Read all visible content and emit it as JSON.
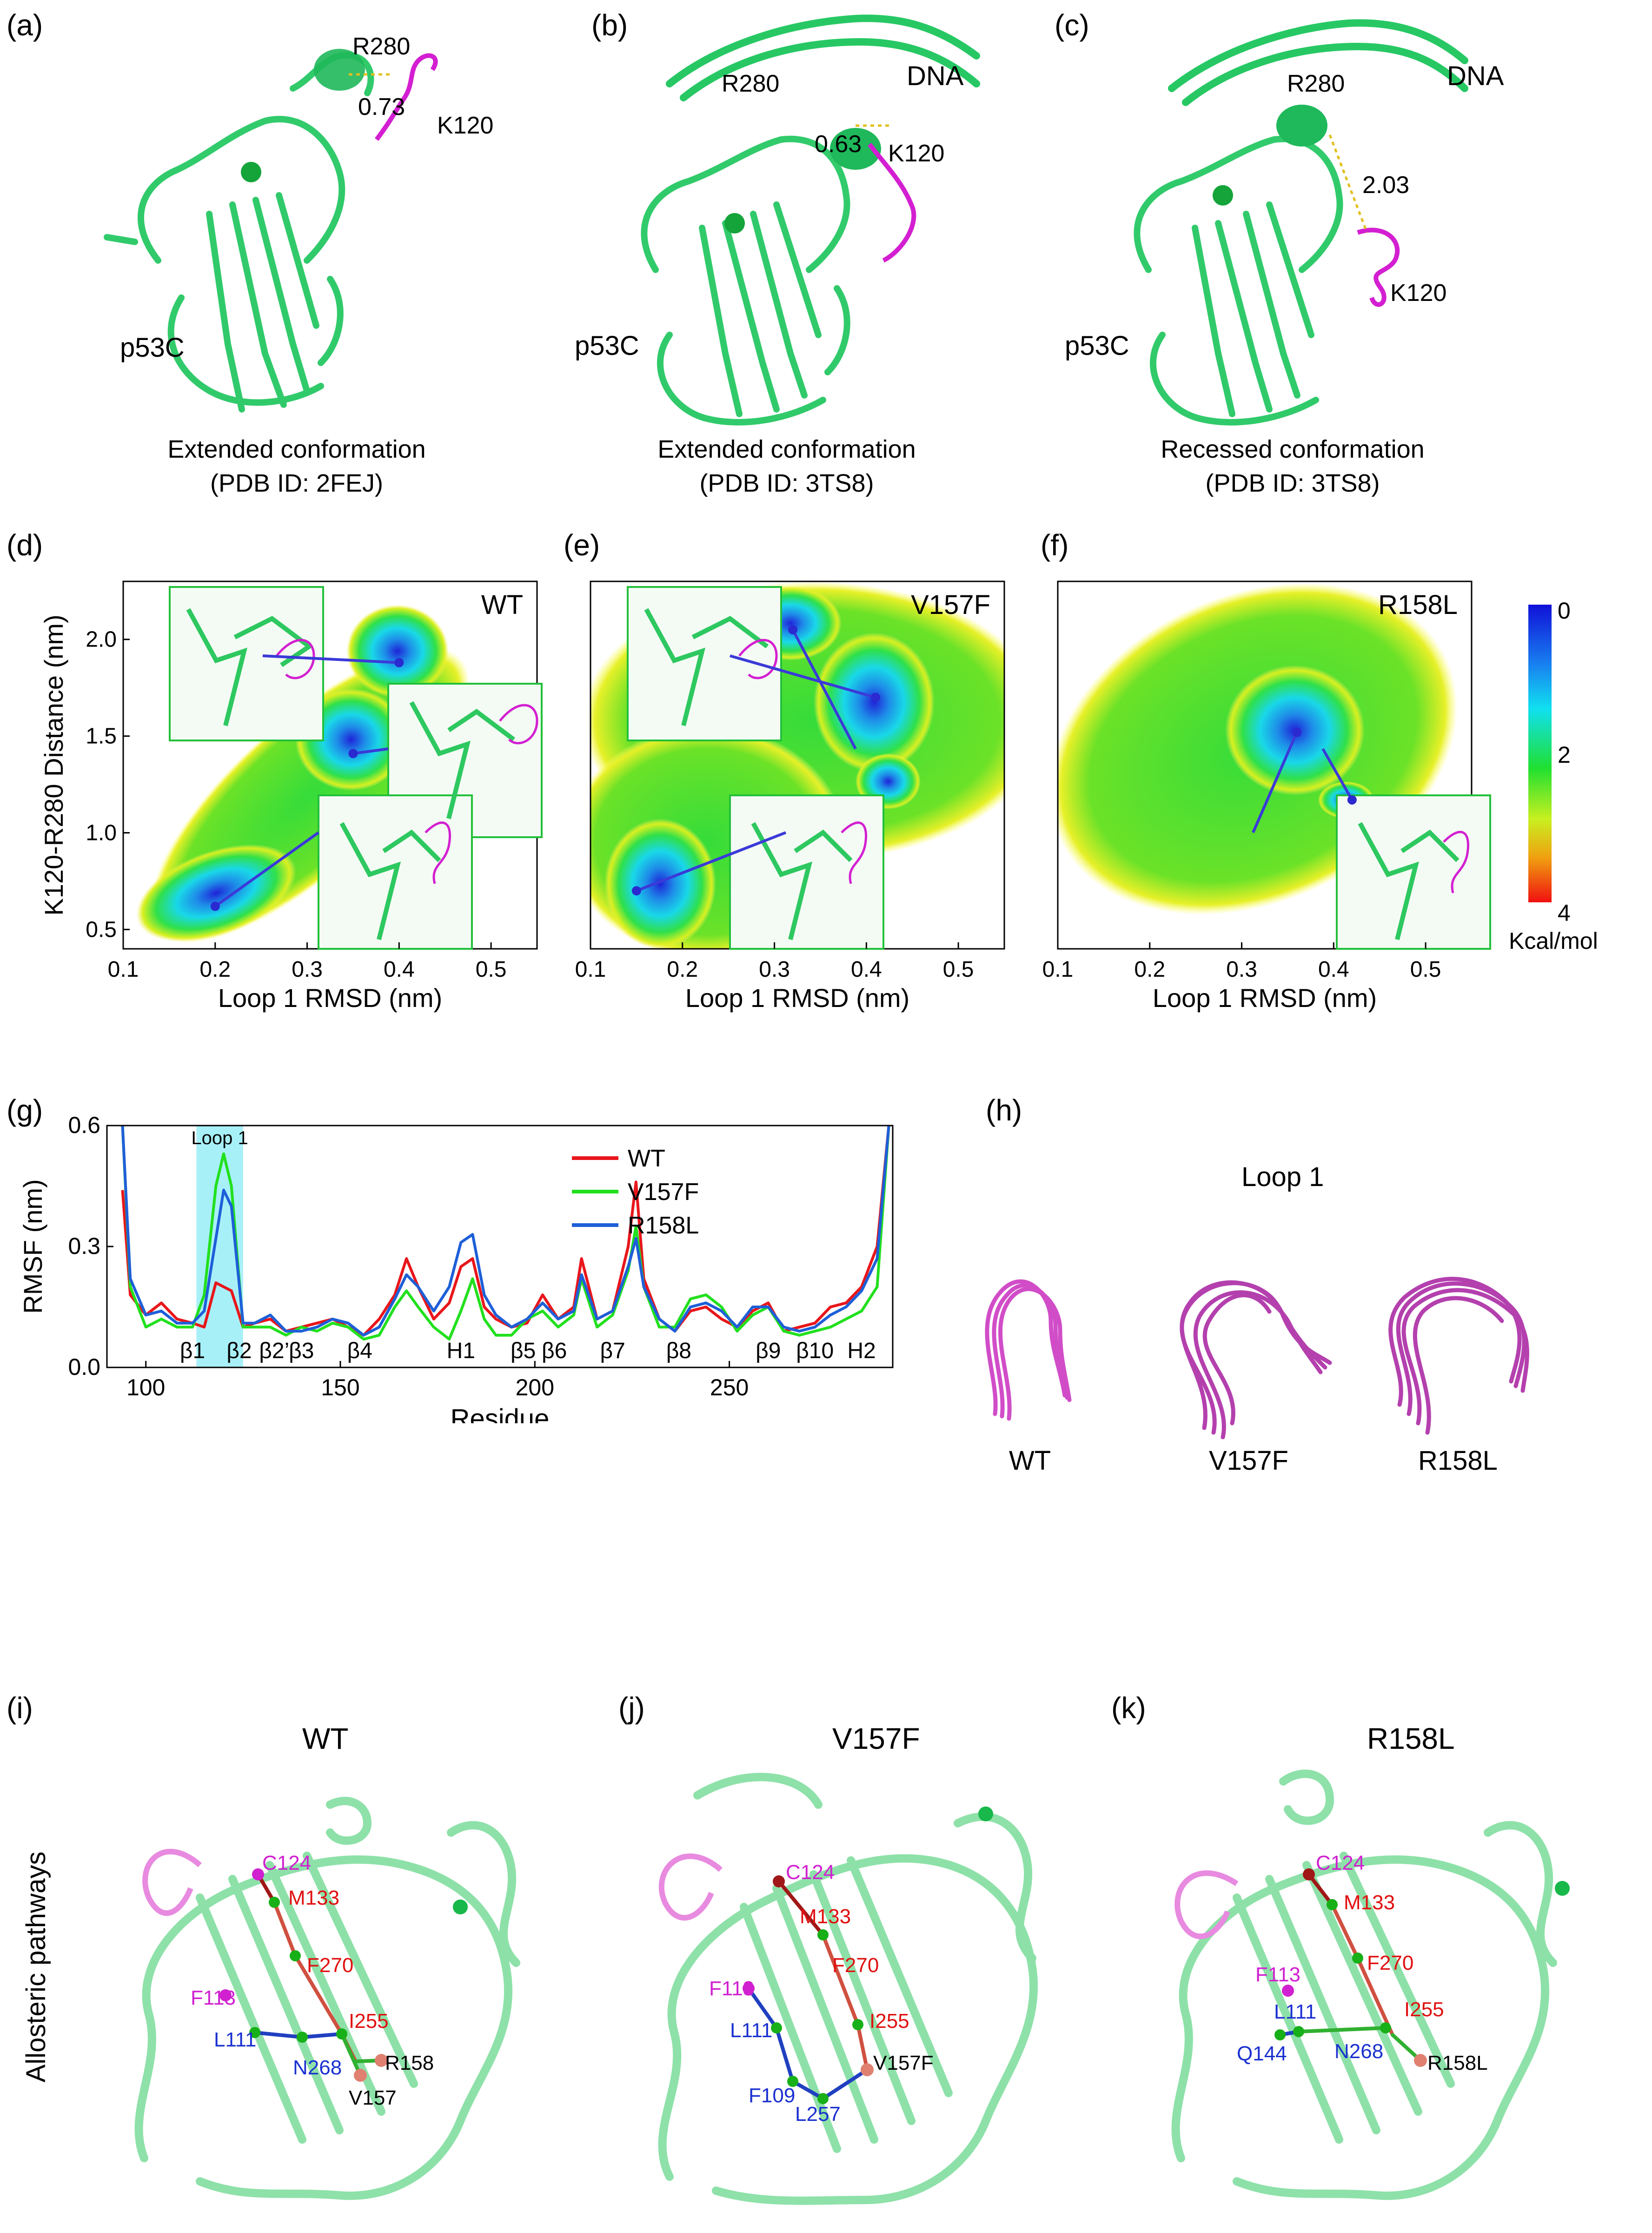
{
  "figure": {
    "panel_labels": {
      "a": "(a)",
      "b": "(b)",
      "c": "(c)",
      "d": "(d)",
      "e": "(e)",
      "f": "(f)",
      "g": "(g)",
      "h": "(h)",
      "i": "(i)",
      "j": "(j)",
      "k": "(k)"
    },
    "top_panels": [
      {
        "residue_a": "R280",
        "residue_b": "K120",
        "distance": "0.73",
        "domain": "p53C",
        "dna": "",
        "caption_line1": "Extended conformation",
        "caption_line2": "(PDB ID: 2FEJ)"
      },
      {
        "residue_a": "R280",
        "residue_b": "K120",
        "distance": "0.63",
        "domain": "p53C",
        "dna": "DNA",
        "caption_line1": "Extended conformation",
        "caption_line2": "(PDB ID: 3TS8)"
      },
      {
        "residue_a": "R280",
        "residue_b": "K120",
        "distance": "2.03",
        "domain": "p53C",
        "dna": "DNA",
        "caption_line1": "Recessed conformation",
        "caption_line2": "(PDB ID: 3TS8)"
      }
    ],
    "colorbar": {
      "top": "0",
      "mid": "2",
      "bottom": "4",
      "unit": "Kcal/mol"
    },
    "loop_panel": {
      "title": "Loop 1",
      "labels": [
        "WT",
        "V157F",
        "R158L"
      ]
    },
    "allosteric": {
      "side_label": "Allosteric pathways",
      "panels": [
        {
          "title": "WT",
          "residues": {
            "c124": "C124",
            "m133": "M133",
            "f113": "F113",
            "f270": "F270",
            "l111": "L111",
            "i255": "I255",
            "n268": "N268",
            "r158": "R158",
            "v157": "V157"
          }
        },
        {
          "title": "V157F",
          "residues": {
            "c124": "C124",
            "m133": "M133",
            "f113": "F113",
            "f270": "F270",
            "l111": "L111",
            "i255": "I255",
            "f109": "F109",
            "l257": "L257",
            "v157f": "V157F"
          }
        },
        {
          "title": "R158L",
          "residues": {
            "c124": "C124",
            "m133": "M133",
            "f113": "F113",
            "f270": "F270",
            "l111": "L111",
            "i255": "I255",
            "q144": "Q144",
            "n268": "N268",
            "r158l": "R158L"
          }
        }
      ]
    }
  },
  "chart_data": [
    {
      "type": "heatmap",
      "panel": "d",
      "title": "WT",
      "xlabel": "Loop 1 RMSD (nm)",
      "ylabel": "K120-R280 Distance (nm)",
      "xlim": [
        0.1,
        0.55
      ],
      "ylim": [
        0.4,
        2.3
      ],
      "xticks": [
        "0.1",
        "0.2",
        "0.3",
        "0.4",
        "0.5"
      ],
      "yticks": [
        "0.5",
        "1.0",
        "1.5",
        "2.0"
      ],
      "minima": [
        {
          "x": 0.2,
          "y": 0.62
        },
        {
          "x": 0.35,
          "y": 1.41
        },
        {
          "x": 0.4,
          "y": 1.88
        }
      ]
    },
    {
      "type": "heatmap",
      "panel": "e",
      "title": "V157F",
      "xlabel": "Loop 1 RMSD (nm)",
      "ylabel": "",
      "xlim": [
        0.1,
        0.55
      ],
      "ylim": [
        0.4,
        2.3
      ],
      "xticks": [
        "0.1",
        "0.2",
        "0.3",
        "0.4",
        "0.5"
      ],
      "minima": [
        {
          "x": 0.15,
          "y": 0.7
        },
        {
          "x": 0.32,
          "y": 2.05
        },
        {
          "x": 0.41,
          "y": 1.7
        },
        {
          "x": 0.43,
          "y": 1.22
        }
      ]
    },
    {
      "type": "heatmap",
      "panel": "f",
      "title": "R158L",
      "xlabel": "Loop 1 RMSD (nm)",
      "ylabel": "",
      "xlim": [
        0.1,
        0.55
      ],
      "ylim": [
        0.4,
        2.3
      ],
      "xticks": [
        "0.1",
        "0.2",
        "0.3",
        "0.4",
        "0.5"
      ],
      "minima": [
        {
          "x": 0.36,
          "y": 1.52
        },
        {
          "x": 0.42,
          "y": 1.17
        }
      ]
    },
    {
      "type": "line",
      "panel": "g",
      "xlabel": "Residue",
      "ylabel": "RMSF (nm)",
      "xlim": [
        90,
        292
      ],
      "ylim": [
        0,
        0.6
      ],
      "xticks": [
        "100",
        "150",
        "200",
        "250"
      ],
      "yticks": [
        "0.0",
        "0.3",
        "0.6"
      ],
      "highlight": {
        "label": "Loop 1",
        "from": 113,
        "to": 125
      },
      "annotations": [
        "β1",
        "β2",
        "β2’",
        "β3",
        "β4",
        "H1",
        "β5",
        "β6",
        "β7",
        "β8",
        "β9",
        "β10",
        "H2"
      ],
      "annotation_x": [
        112,
        124,
        133,
        140,
        155,
        181,
        197,
        205,
        220,
        237,
        260,
        272,
        284
      ],
      "x": [
        94,
        96,
        100,
        104,
        108,
        112,
        115,
        118,
        120,
        122,
        125,
        128,
        132,
        136,
        140,
        144,
        148,
        152,
        156,
        160,
        164,
        167,
        170,
        174,
        178,
        181,
        184,
        187,
        190,
        194,
        198,
        202,
        206,
        210,
        212,
        216,
        220,
        224,
        226,
        228,
        232,
        236,
        240,
        244,
        248,
        252,
        256,
        260,
        264,
        268,
        272,
        276,
        280,
        284,
        288,
        291
      ],
      "series": [
        {
          "name": "WT",
          "color": "#e8161b",
          "values": [
            0.44,
            0.18,
            0.13,
            0.16,
            0.12,
            0.11,
            0.1,
            0.21,
            0.2,
            0.19,
            0.1,
            0.11,
            0.12,
            0.09,
            0.1,
            0.11,
            0.12,
            0.1,
            0.08,
            0.12,
            0.18,
            0.27,
            0.2,
            0.12,
            0.16,
            0.25,
            0.27,
            0.15,
            0.12,
            0.1,
            0.11,
            0.18,
            0.12,
            0.15,
            0.27,
            0.12,
            0.14,
            0.3,
            0.46,
            0.22,
            0.12,
            0.09,
            0.14,
            0.15,
            0.12,
            0.1,
            0.14,
            0.16,
            0.09,
            0.1,
            0.11,
            0.15,
            0.16,
            0.2,
            0.3,
            0.6
          ]
        },
        {
          "name": "V157F",
          "color": "#22e01e",
          "values": [
            0.6,
            0.2,
            0.1,
            0.12,
            0.1,
            0.1,
            0.18,
            0.45,
            0.53,
            0.45,
            0.1,
            0.1,
            0.1,
            0.08,
            0.1,
            0.09,
            0.11,
            0.1,
            0.07,
            0.08,
            0.15,
            0.19,
            0.15,
            0.1,
            0.07,
            0.14,
            0.22,
            0.12,
            0.08,
            0.08,
            0.12,
            0.14,
            0.1,
            0.13,
            0.22,
            0.1,
            0.13,
            0.24,
            0.35,
            0.2,
            0.1,
            0.1,
            0.17,
            0.18,
            0.15,
            0.09,
            0.13,
            0.15,
            0.09,
            0.08,
            0.09,
            0.1,
            0.12,
            0.14,
            0.2,
            0.6
          ]
        },
        {
          "name": "R158L",
          "color": "#1e5fd8",
          "values": [
            0.6,
            0.22,
            0.13,
            0.14,
            0.11,
            0.11,
            0.14,
            0.32,
            0.44,
            0.4,
            0.11,
            0.11,
            0.13,
            0.09,
            0.09,
            0.1,
            0.12,
            0.11,
            0.08,
            0.1,
            0.17,
            0.23,
            0.2,
            0.14,
            0.2,
            0.31,
            0.33,
            0.18,
            0.13,
            0.1,
            0.12,
            0.16,
            0.12,
            0.14,
            0.23,
            0.12,
            0.14,
            0.25,
            0.32,
            0.2,
            0.12,
            0.09,
            0.15,
            0.16,
            0.14,
            0.1,
            0.15,
            0.15,
            0.1,
            0.09,
            0.1,
            0.13,
            0.15,
            0.19,
            0.27,
            0.6
          ]
        }
      ]
    }
  ]
}
